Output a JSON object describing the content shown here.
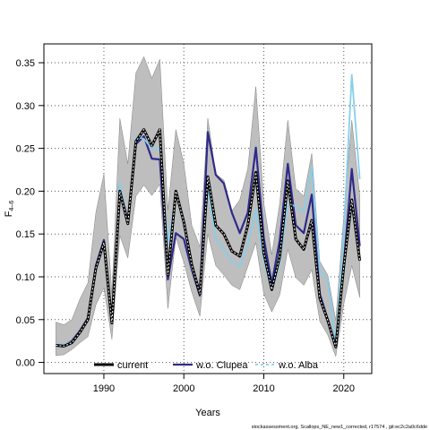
{
  "chart_data": {
    "type": "line",
    "xlabel": "Years",
    "ylabel_main": "F",
    "ylabel_sub": "4–6",
    "xlim": [
      1982.5,
      2023.5
    ],
    "ylim": [
      -0.013,
      0.372
    ],
    "x_ticks": [
      1990,
      2000,
      2010,
      2020
    ],
    "y_ticks": [
      0.0,
      0.05,
      0.1,
      0.15,
      0.2,
      0.25,
      0.3,
      0.35
    ],
    "y_tick_labels": [
      "0.00",
      "0.05",
      "0.10",
      "0.15",
      "0.20",
      "0.25",
      "0.30",
      "0.35"
    ],
    "grid": true,
    "legend_position": "bottom",
    "footer": "stockassessment.org, Scallops_NE_new1_corrected, r17574 , git:ec2c2a0c6dde",
    "colors": {
      "current": "#000000",
      "band": "#bebebe",
      "clupea": "#2f2b8a",
      "alba": "#87ceeb",
      "grid": "#555555"
    },
    "x": [
      1984,
      1985,
      1986,
      1987,
      1988,
      1989,
      1990,
      1991,
      1992,
      1993,
      1994,
      1995,
      1996,
      1997,
      1998,
      1999,
      2000,
      2001,
      2002,
      2003,
      2004,
      2005,
      2006,
      2007,
      2008,
      2009,
      2010,
      2011,
      2012,
      2013,
      2014,
      2015,
      2016,
      2017,
      2018,
      2019,
      2020,
      2021,
      2022
    ],
    "band_upper": [
      0.047,
      0.044,
      0.05,
      0.074,
      0.093,
      0.175,
      0.22,
      0.08,
      0.285,
      0.232,
      0.338,
      0.357,
      0.332,
      0.354,
      0.178,
      0.272,
      0.232,
      0.16,
      0.135,
      0.285,
      0.22,
      0.213,
      0.177,
      0.19,
      0.226,
      0.322,
      0.186,
      0.126,
      0.186,
      0.283,
      0.203,
      0.194,
      0.244,
      0.118,
      0.102,
      0.049,
      0.171,
      0.283,
      0.195
    ],
    "band_lower": [
      0.008,
      0.009,
      0.015,
      0.023,
      0.03,
      0.067,
      0.087,
      0.027,
      0.148,
      0.122,
      0.194,
      0.207,
      0.195,
      0.208,
      0.063,
      0.146,
      0.117,
      0.082,
      0.054,
      0.15,
      0.113,
      0.102,
      0.09,
      0.085,
      0.112,
      0.14,
      0.08,
      0.059,
      0.079,
      0.132,
      0.099,
      0.09,
      0.108,
      0.048,
      0.032,
      0.007,
      0.068,
      0.113,
      0.076
    ],
    "series": [
      {
        "name": "current",
        "values": [
          0.02,
          0.019,
          0.023,
          0.035,
          0.05,
          0.11,
          0.14,
          0.046,
          0.2,
          0.162,
          0.258,
          0.272,
          0.253,
          0.272,
          0.102,
          0.2,
          0.164,
          0.114,
          0.08,
          0.217,
          0.16,
          0.15,
          0.13,
          0.124,
          0.16,
          0.222,
          0.128,
          0.085,
          0.124,
          0.212,
          0.144,
          0.132,
          0.166,
          0.075,
          0.049,
          0.018,
          0.113,
          0.19,
          0.119
        ]
      },
      {
        "name": "w.o. Clupea",
        "values": [
          0.02,
          0.02,
          0.025,
          0.037,
          0.052,
          0.113,
          0.143,
          0.048,
          0.205,
          0.165,
          0.255,
          0.264,
          0.238,
          0.237,
          0.097,
          0.151,
          0.144,
          0.108,
          0.078,
          0.269,
          0.219,
          0.209,
          0.175,
          0.151,
          0.175,
          0.251,
          0.145,
          0.092,
          0.143,
          0.232,
          0.16,
          0.151,
          0.196,
          0.08,
          0.05,
          0.019,
          0.115,
          0.226,
          0.136
        ]
      },
      {
        "name": "w.o. Alba",
        "values": [
          0.021,
          0.021,
          0.024,
          0.036,
          0.049,
          0.107,
          0.137,
          0.045,
          0.209,
          0.163,
          0.264,
          0.261,
          0.25,
          0.25,
          0.138,
          0.197,
          0.16,
          0.11,
          0.081,
          0.203,
          0.145,
          0.132,
          0.118,
          0.112,
          0.138,
          0.178,
          0.118,
          0.083,
          0.115,
          0.186,
          0.182,
          0.176,
          0.228,
          0.107,
          0.096,
          0.021,
          0.153,
          0.336,
          0.214
        ]
      }
    ]
  }
}
